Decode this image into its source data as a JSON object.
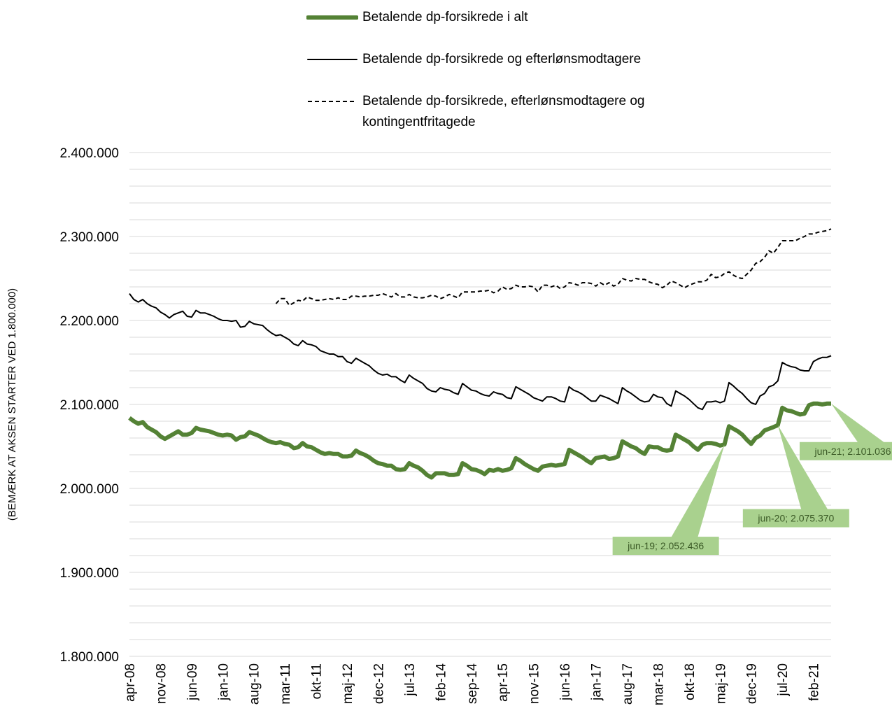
{
  "chart_data": {
    "type": "line",
    "y_axis_label": "(BEMÆRK AT AKSEN STARTER VED 1.800.000)",
    "legend": "top",
    "grid": true,
    "ylim": [
      1800000,
      2400000
    ],
    "yticks": [
      {
        "value": 1800000,
        "label": "1.800.000"
      },
      {
        "value": 1900000,
        "label": "1.900.000"
      },
      {
        "value": 2000000,
        "label": "2.000.000"
      },
      {
        "value": 2100000,
        "label": "2.100.000"
      },
      {
        "value": 2200000,
        "label": "2.200.000"
      },
      {
        "value": 2300000,
        "label": "2.300.000"
      },
      {
        "value": 2400000,
        "label": "2.400.000"
      }
    ],
    "ygrid": [
      1800000,
      1820000,
      1840000,
      1860000,
      1880000,
      1900000,
      1920000,
      1940000,
      1960000,
      1980000,
      2000000,
      2020000,
      2040000,
      2060000,
      2080000,
      2100000,
      2120000,
      2140000,
      2160000,
      2180000,
      2200000,
      2220000,
      2240000,
      2260000,
      2280000,
      2300000,
      2320000,
      2340000,
      2360000,
      2380000,
      2400000
    ],
    "categories": [
      "apr-08",
      null,
      null,
      null,
      null,
      null,
      null,
      "nov-08",
      null,
      null,
      null,
      null,
      null,
      null,
      "jun-09",
      null,
      null,
      null,
      null,
      null,
      null,
      "jan-10",
      null,
      null,
      null,
      null,
      null,
      null,
      "aug-10",
      null,
      null,
      null,
      null,
      null,
      null,
      "mar-11",
      null,
      null,
      null,
      null,
      null,
      null,
      "okt-11",
      null,
      null,
      null,
      null,
      null,
      null,
      "maj-12",
      null,
      null,
      null,
      null,
      null,
      null,
      "dec-12",
      null,
      null,
      null,
      null,
      null,
      null,
      "jul-13",
      null,
      null,
      null,
      null,
      null,
      null,
      "feb-14",
      null,
      null,
      null,
      null,
      null,
      null,
      "sep-14",
      null,
      null,
      null,
      null,
      null,
      null,
      "apr-15",
      null,
      null,
      null,
      null,
      null,
      null,
      "nov-15",
      null,
      null,
      null,
      null,
      null,
      null,
      "jun-16",
      null,
      null,
      null,
      null,
      null,
      null,
      "jan-17",
      null,
      null,
      null,
      null,
      null,
      null,
      "aug-17",
      null,
      null,
      null,
      null,
      null,
      null,
      "mar-18",
      null,
      null,
      null,
      null,
      null,
      null,
      "okt-18",
      null,
      null,
      null,
      null,
      null,
      null,
      "maj-19",
      null,
      null,
      null,
      null,
      null,
      null,
      "dec-19",
      null,
      null,
      null,
      null,
      null,
      null,
      "jul-20",
      null,
      null,
      null,
      null,
      null,
      null,
      "feb-21",
      null,
      null,
      null,
      null
    ],
    "series": [
      {
        "name": "Betalende dp-forsikrede i alt",
        "color": "#548235",
        "line_width": 6,
        "line_style": "solid",
        "values": [
          2084000,
          2080000,
          2077000,
          2079000,
          2073000,
          2070000,
          2067000,
          2062000,
          2059000,
          2062000,
          2065000,
          2068000,
          2064000,
          2064000,
          2066000,
          2072000,
          2070000,
          2069000,
          2068000,
          2066000,
          2064000,
          2063000,
          2064000,
          2063000,
          2058000,
          2061000,
          2062000,
          2067000,
          2065000,
          2063000,
          2060000,
          2057000,
          2055000,
          2054000,
          2055000,
          2053000,
          2052000,
          2048000,
          2049000,
          2054000,
          2050000,
          2049000,
          2046000,
          2043000,
          2041000,
          2042000,
          2041000,
          2041000,
          2038000,
          2038000,
          2039000,
          2045000,
          2042000,
          2040000,
          2037000,
          2033000,
          2030000,
          2029000,
          2027000,
          2027000,
          2023000,
          2022000,
          2023000,
          2030000,
          2027000,
          2025000,
          2021000,
          2016000,
          2013000,
          2018000,
          2018000,
          2018000,
          2016000,
          2016000,
          2017000,
          2030000,
          2027000,
          2023000,
          2022000,
          2020000,
          2017000,
          2022000,
          2021000,
          2023000,
          2021000,
          2022000,
          2024000,
          2036000,
          2033000,
          2029000,
          2026000,
          2023000,
          2021000,
          2026000,
          2027000,
          2028000,
          2027000,
          2028000,
          2029000,
          2046000,
          2043000,
          2040000,
          2037000,
          2033000,
          2030000,
          2036000,
          2037000,
          2038000,
          2035000,
          2036000,
          2038000,
          2056000,
          2053000,
          2050000,
          2048000,
          2044000,
          2041000,
          2050000,
          2049000,
          2049000,
          2046000,
          2045000,
          2046000,
          2064000,
          2061000,
          2058000,
          2055000,
          2050000,
          2046000,
          2052000,
          2054000,
          2054000,
          2053000,
          2051000,
          2052436,
          2074000,
          2071000,
          2068000,
          2064000,
          2058000,
          2053000,
          2060000,
          2063000,
          2069000,
          2071000,
          2073000,
          2075370,
          2096000,
          2093000,
          2092000,
          2090000,
          2088000,
          2089000,
          2099000,
          2101000,
          2101000,
          2100000,
          2101000,
          2101036
        ],
        "value_labels": [
          null,
          null,
          null,
          null,
          null,
          null,
          null,
          null,
          null,
          null,
          null,
          null,
          null,
          null,
          null,
          null,
          null,
          null,
          null,
          null,
          null,
          null,
          null,
          null,
          null,
          null,
          null,
          null,
          null,
          null,
          null,
          null,
          null,
          null,
          null,
          null,
          null,
          null,
          null,
          null,
          null,
          null,
          null,
          null,
          null,
          null,
          null,
          null,
          null,
          null,
          null,
          null,
          null,
          null,
          null,
          null,
          null,
          null,
          null,
          null,
          null,
          null,
          null,
          null,
          null,
          null,
          null,
          null,
          null,
          null,
          null,
          null,
          null,
          null,
          null,
          null,
          null,
          null,
          null,
          null,
          null,
          null,
          null,
          null,
          null,
          null,
          null,
          null,
          null,
          null,
          null,
          null,
          null,
          null,
          null,
          null,
          null,
          null,
          null,
          null,
          null,
          null,
          null,
          null,
          null,
          null,
          null,
          null,
          null,
          null,
          null,
          null,
          null,
          null,
          null,
          null,
          null,
          null,
          null,
          null,
          null,
          null,
          null,
          null,
          null,
          null,
          null,
          null,
          null,
          null,
          null,
          null,
          null,
          null,
          "jun-19; 2.052.436",
          null,
          null,
          null,
          null,
          null,
          null,
          null,
          null,
          null,
          null,
          null,
          "jun-20; 2.075.370",
          null,
          null,
          null,
          null,
          null,
          null,
          null,
          null,
          null,
          null,
          null,
          "jun-21; 2.101.036"
        ]
      },
      {
        "name": "Betalende dp-forsikrede og efterlønsmodtagere",
        "color": "#000000",
        "line_width": 2,
        "line_style": "solid",
        "values": [
          2232000,
          2225000,
          2222000,
          2225000,
          2220000,
          2217000,
          2215000,
          2210000,
          2207000,
          2203000,
          2207000,
          2209000,
          2211000,
          2205000,
          2204000,
          2212000,
          2209000,
          2209000,
          2207000,
          2205000,
          2202000,
          2200000,
          2200000,
          2199000,
          2200000,
          2192000,
          2193000,
          2199000,
          2196000,
          2195000,
          2194000,
          2189000,
          2185000,
          2182000,
          2183000,
          2180000,
          2177000,
          2172000,
          2170000,
          2176000,
          2172000,
          2171000,
          2169000,
          2164000,
          2162000,
          2160000,
          2160000,
          2157000,
          2157000,
          2151000,
          2149000,
          2155000,
          2152000,
          2149000,
          2146000,
          2141000,
          2137000,
          2135000,
          2136000,
          2133000,
          2133000,
          2129000,
          2126000,
          2135000,
          2131000,
          2128000,
          2125000,
          2119000,
          2116000,
          2115000,
          2120000,
          2118000,
          2117000,
          2114000,
          2112000,
          2125000,
          2121000,
          2117000,
          2116000,
          2113000,
          2111000,
          2110000,
          2115000,
          2113000,
          2112000,
          2108000,
          2107000,
          2121000,
          2118000,
          2115000,
          2112000,
          2108000,
          2106000,
          2104000,
          2109000,
          2109000,
          2107000,
          2104000,
          2103000,
          2121000,
          2117000,
          2115000,
          2112000,
          2108000,
          2104000,
          2104000,
          2111000,
          2109000,
          2107000,
          2104000,
          2101000,
          2120000,
          2116000,
          2113000,
          2109000,
          2105000,
          2103000,
          2104000,
          2112000,
          2109000,
          2108000,
          2101000,
          2098000,
          2116000,
          2113000,
          2110000,
          2106000,
          2101000,
          2096000,
          2094000,
          2103000,
          2103000,
          2104000,
          2102000,
          2104000,
          2126000,
          2122000,
          2117000,
          2113000,
          2107000,
          2102000,
          2100000,
          2110000,
          2113000,
          2121000,
          2123000,
          2128000,
          2150000,
          2147000,
          2145000,
          2144000,
          2141000,
          2140000,
          2140000,
          2151000,
          2154000,
          2156000,
          2156000,
          2158000
        ]
      },
      {
        "name": "Betalende dp-forsikrede, efterlønsmodtagere og kontingentfritagede",
        "color": "#000000",
        "line_width": 2,
        "line_style": "dashed",
        "values": [
          null,
          null,
          null,
          null,
          null,
          null,
          null,
          null,
          null,
          null,
          null,
          null,
          null,
          null,
          null,
          null,
          null,
          null,
          null,
          null,
          null,
          null,
          null,
          null,
          null,
          null,
          null,
          null,
          null,
          null,
          null,
          null,
          null,
          2220000,
          2226000,
          2226000,
          2218000,
          2221000,
          2224000,
          2223000,
          2228000,
          2226000,
          2224000,
          2224000,
          2225000,
          2226000,
          2225000,
          2227000,
          2225000,
          2225000,
          2229000,
          2229000,
          2228000,
          2229000,
          2229000,
          2230000,
          2230000,
          2232000,
          2230000,
          2228000,
          2232000,
          2228000,
          2228000,
          2231000,
          2228000,
          2227000,
          2227000,
          2228000,
          2230000,
          2229000,
          2226000,
          2228000,
          2231000,
          2229000,
          2227000,
          2234000,
          2234000,
          2234000,
          2234000,
          2235000,
          2235000,
          2236000,
          2233000,
          2235000,
          2240000,
          2237000,
          2238000,
          2242000,
          2240000,
          2240000,
          2241000,
          2240000,
          2234000,
          2242000,
          2242000,
          2240000,
          2242000,
          2238000,
          2240000,
          2245000,
          2244000,
          2242000,
          2245000,
          2245000,
          2244000,
          2241000,
          2245000,
          2242000,
          2245000,
          2241000,
          2243000,
          2250000,
          2248000,
          2247000,
          2250000,
          2249000,
          2249000,
          2246000,
          2244000,
          2243000,
          2239000,
          2242000,
          2247000,
          2245000,
          2242000,
          2239000,
          2242000,
          2244000,
          2246000,
          2246000,
          2248000,
          2255000,
          2251000,
          2252000,
          2256000,
          2258000,
          2254000,
          2251000,
          2250000,
          2255000,
          2260000,
          2268000,
          2270000,
          2275000,
          2283000,
          2280000,
          2287000,
          2295000,
          2295000,
          2295000,
          2295000,
          2298000,
          2300000,
          2303000,
          2303000,
          2305000,
          2306000,
          2307000,
          2309000
        ]
      }
    ]
  }
}
